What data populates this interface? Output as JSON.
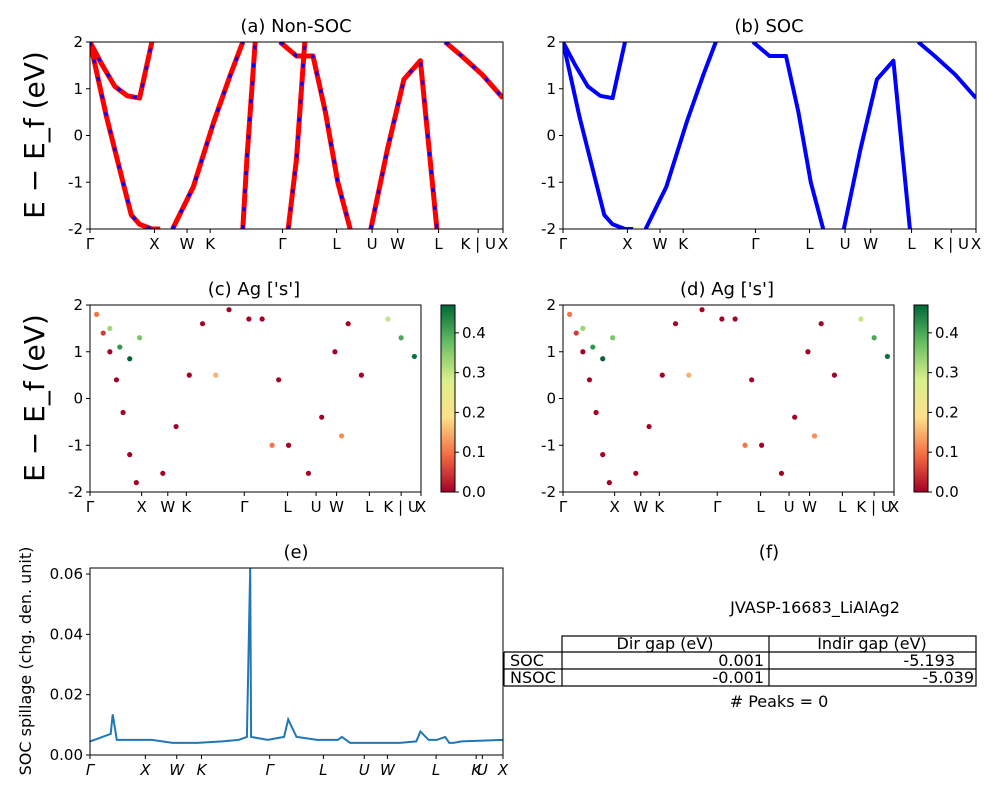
{
  "colors": {
    "nonsoc_up": "#ff0000",
    "nonsoc_dn": "#0000ff",
    "soc": "#0000ff",
    "spillage": "#1f77b4"
  },
  "kpath": {
    "labels": [
      "Γ",
      "X",
      "W",
      "K",
      "Γ",
      "L",
      "U",
      "W",
      "L",
      "K | U",
      "X"
    ],
    "labels_italic": [
      "Γ",
      "X",
      "W",
      "K",
      "Γ",
      "L",
      "U",
      "W",
      "L",
      "K",
      "U",
      "X"
    ]
  },
  "ylabel_band": "E − E_f (eV)",
  "chart_data": [
    {
      "id": "a",
      "type": "line",
      "title": "(a) Non-SOC",
      "ylim": [
        -2,
        2
      ],
      "yticks": [
        -2,
        -1,
        0,
        1,
        2
      ],
      "xlabel": "",
      "ylabel": "E − E_f (eV)",
      "xticks": [
        "Γ",
        "X",
        "W",
        "K",
        "Γ",
        "L",
        "U",
        "W",
        "L",
        "K | U",
        "X"
      ],
      "series": [
        {
          "x": [
            0,
            0.03,
            0.06,
            0.09,
            0.12,
            0.15
          ],
          "values": [
            2.0,
            1.5,
            1.05,
            0.85,
            0.8,
            2.0
          ]
        },
        {
          "x": [
            0,
            0.04,
            0.08,
            0.1,
            0.12,
            0.15,
            0.17
          ],
          "values": [
            2.0,
            0.4,
            -1.0,
            -1.7,
            -1.9,
            -2.0,
            -2.0
          ]
        },
        {
          "x": [
            0.2,
            0.25,
            0.3,
            0.34,
            0.37
          ],
          "values": [
            -2.0,
            -1.1,
            0.3,
            1.3,
            2.0
          ]
        },
        {
          "x": [
            0.37,
            0.38,
            0.4
          ],
          "values": [
            -2.0,
            -0.5,
            2.0
          ]
        },
        {
          "x": [
            0.46,
            0.5,
            0.54,
            0.57,
            0.6,
            0.63
          ],
          "values": [
            2.0,
            1.7,
            1.7,
            0.5,
            -1.0,
            -2.0
          ]
        },
        {
          "x": [
            0.48,
            0.5,
            0.52
          ],
          "values": [
            -2.0,
            -0.5,
            2.0
          ]
        },
        {
          "x": [
            0.68,
            0.72,
            0.76,
            0.8,
            0.84
          ],
          "values": [
            -2.0,
            -0.3,
            1.2,
            1.6,
            -2.0
          ]
        },
        {
          "x": [
            0.86,
            0.9,
            0.95,
            1.0
          ],
          "values": [
            2.0,
            1.7,
            1.3,
            0.8
          ]
        }
      ]
    },
    {
      "id": "b",
      "type": "line",
      "title": "(b) SOC",
      "ylim": [
        -2,
        2
      ],
      "yticks": [
        -2,
        -1,
        0,
        1,
        2
      ],
      "xlabel": "",
      "ylabel": "",
      "xticks": [
        "Γ",
        "X",
        "W",
        "K",
        "Γ",
        "L",
        "U",
        "W",
        "L",
        "K | U",
        "X"
      ],
      "series": [
        {
          "x": [
            0,
            0.03,
            0.06,
            0.09,
            0.12,
            0.15
          ],
          "values": [
            2.0,
            1.5,
            1.05,
            0.85,
            0.8,
            2.0
          ]
        },
        {
          "x": [
            0,
            0.04,
            0.08,
            0.1,
            0.12,
            0.15,
            0.17
          ],
          "values": [
            2.0,
            0.4,
            -1.0,
            -1.7,
            -1.9,
            -2.0,
            -2.0
          ]
        },
        {
          "x": [
            0.2,
            0.25,
            0.3,
            0.34,
            0.37
          ],
          "values": [
            -2.0,
            -1.1,
            0.3,
            1.3,
            2.0
          ]
        },
        {
          "x": [
            0.46,
            0.5,
            0.54,
            0.57,
            0.6,
            0.63
          ],
          "values": [
            2.0,
            1.7,
            1.7,
            0.5,
            -1.0,
            -2.0
          ]
        },
        {
          "x": [
            0.68,
            0.72,
            0.76,
            0.8,
            0.84
          ],
          "values": [
            -2.0,
            -0.3,
            1.2,
            1.6,
            -2.0
          ]
        },
        {
          "x": [
            0.86,
            0.9,
            0.95,
            1.0
          ],
          "values": [
            2.0,
            1.7,
            1.3,
            0.8
          ]
        }
      ]
    },
    {
      "id": "c",
      "type": "scatter",
      "title": "(c)  Ag ['s']",
      "ylim": [
        -2,
        2
      ],
      "yticks": [
        -2,
        -1,
        0,
        1,
        2
      ],
      "xlabel": "",
      "ylabel": "E − E_f (eV)",
      "xticks": [
        "Γ",
        "X",
        "W",
        "K",
        "Γ",
        "L",
        "U",
        "W",
        "L",
        "K | U",
        "X"
      ],
      "colorbar": {
        "min": 0.0,
        "max": 0.47,
        "ticks": [
          "0.0",
          "0.1",
          "0.2",
          "0.3",
          "0.4"
        ]
      },
      "points": [
        {
          "x": 0.02,
          "y": 1.8,
          "v": 0.1
        },
        {
          "x": 0.04,
          "y": 1.4,
          "v": 0.05
        },
        {
          "x": 0.06,
          "y": 1.0,
          "v": 0.0
        },
        {
          "x": 0.08,
          "y": 0.4,
          "v": 0.0
        },
        {
          "x": 0.1,
          "y": -0.3,
          "v": 0.0
        },
        {
          "x": 0.12,
          "y": -1.2,
          "v": 0.0
        },
        {
          "x": 0.14,
          "y": -1.8,
          "v": 0.0
        },
        {
          "x": 0.06,
          "y": 1.5,
          "v": 0.33
        },
        {
          "x": 0.09,
          "y": 1.1,
          "v": 0.42
        },
        {
          "x": 0.12,
          "y": 0.85,
          "v": 0.47
        },
        {
          "x": 0.15,
          "y": 1.3,
          "v": 0.36
        },
        {
          "x": 0.22,
          "y": -1.6,
          "v": 0.0
        },
        {
          "x": 0.26,
          "y": -0.6,
          "v": 0.0
        },
        {
          "x": 0.3,
          "y": 0.5,
          "v": 0.0
        },
        {
          "x": 0.34,
          "y": 1.6,
          "v": 0.0
        },
        {
          "x": 0.38,
          "y": 0.5,
          "v": 0.15
        },
        {
          "x": 0.42,
          "y": 1.9,
          "v": 0.0
        },
        {
          "x": 0.48,
          "y": 1.7,
          "v": 0.0
        },
        {
          "x": 0.52,
          "y": 1.7,
          "v": 0.0
        },
        {
          "x": 0.57,
          "y": 0.4,
          "v": 0.0
        },
        {
          "x": 0.6,
          "y": -1.0,
          "v": 0.0
        },
        {
          "x": 0.55,
          "y": -1.0,
          "v": 0.1
        },
        {
          "x": 0.66,
          "y": -1.6,
          "v": 0.0
        },
        {
          "x": 0.7,
          "y": -0.4,
          "v": 0.0
        },
        {
          "x": 0.74,
          "y": 1.0,
          "v": 0.0
        },
        {
          "x": 0.78,
          "y": 1.6,
          "v": 0.0
        },
        {
          "x": 0.82,
          "y": 0.5,
          "v": 0.0
        },
        {
          "x": 0.76,
          "y": -0.8,
          "v": 0.12
        },
        {
          "x": 0.9,
          "y": 1.7,
          "v": 0.3
        },
        {
          "x": 0.94,
          "y": 1.3,
          "v": 0.4
        },
        {
          "x": 0.98,
          "y": 0.9,
          "v": 0.46
        }
      ]
    },
    {
      "id": "d",
      "type": "scatter",
      "title": "(d) Ag ['s']",
      "ylim": [
        -2,
        2
      ],
      "yticks": [
        -2,
        -1,
        0,
        1,
        2
      ],
      "xlabel": "",
      "ylabel": "",
      "xticks": [
        "Γ",
        "X",
        "W",
        "K",
        "Γ",
        "L",
        "U",
        "W",
        "L",
        "K | U",
        "X"
      ],
      "colorbar": {
        "min": 0.0,
        "max": 0.47,
        "ticks": [
          "0.0",
          "0.1",
          "0.2",
          "0.3",
          "0.4"
        ]
      },
      "points": [
        {
          "x": 0.02,
          "y": 1.8,
          "v": 0.1
        },
        {
          "x": 0.04,
          "y": 1.4,
          "v": 0.05
        },
        {
          "x": 0.06,
          "y": 1.0,
          "v": 0.0
        },
        {
          "x": 0.08,
          "y": 0.4,
          "v": 0.0
        },
        {
          "x": 0.1,
          "y": -0.3,
          "v": 0.0
        },
        {
          "x": 0.12,
          "y": -1.2,
          "v": 0.0
        },
        {
          "x": 0.14,
          "y": -1.8,
          "v": 0.0
        },
        {
          "x": 0.06,
          "y": 1.5,
          "v": 0.33
        },
        {
          "x": 0.09,
          "y": 1.1,
          "v": 0.42
        },
        {
          "x": 0.12,
          "y": 0.85,
          "v": 0.47
        },
        {
          "x": 0.15,
          "y": 1.3,
          "v": 0.36
        },
        {
          "x": 0.22,
          "y": -1.6,
          "v": 0.0
        },
        {
          "x": 0.26,
          "y": -0.6,
          "v": 0.0
        },
        {
          "x": 0.3,
          "y": 0.5,
          "v": 0.0
        },
        {
          "x": 0.34,
          "y": 1.6,
          "v": 0.0
        },
        {
          "x": 0.38,
          "y": 0.5,
          "v": 0.15
        },
        {
          "x": 0.42,
          "y": 1.9,
          "v": 0.0
        },
        {
          "x": 0.48,
          "y": 1.7,
          "v": 0.0
        },
        {
          "x": 0.52,
          "y": 1.7,
          "v": 0.0
        },
        {
          "x": 0.57,
          "y": 0.4,
          "v": 0.0
        },
        {
          "x": 0.6,
          "y": -1.0,
          "v": 0.0
        },
        {
          "x": 0.55,
          "y": -1.0,
          "v": 0.1
        },
        {
          "x": 0.66,
          "y": -1.6,
          "v": 0.0
        },
        {
          "x": 0.7,
          "y": -0.4,
          "v": 0.0
        },
        {
          "x": 0.74,
          "y": 1.0,
          "v": 0.0
        },
        {
          "x": 0.78,
          "y": 1.6,
          "v": 0.0
        },
        {
          "x": 0.82,
          "y": 0.5,
          "v": 0.0
        },
        {
          "x": 0.76,
          "y": -0.8,
          "v": 0.12
        },
        {
          "x": 0.9,
          "y": 1.7,
          "v": 0.3
        },
        {
          "x": 0.94,
          "y": 1.3,
          "v": 0.4
        },
        {
          "x": 0.98,
          "y": 0.9,
          "v": 0.46
        }
      ]
    },
    {
      "id": "e",
      "type": "line",
      "title": "(e)",
      "ylim": [
        0,
        0.062
      ],
      "yticks": [
        "0.00",
        "0.02",
        "0.04",
        "0.06"
      ],
      "xlabel": "",
      "ylabel": "SOC spillage (chg. den. unit)",
      "xticks": [
        "Γ",
        "X",
        "W",
        "K",
        "Γ",
        "L",
        "U",
        "W",
        "L",
        "K",
        "U",
        "X"
      ],
      "series": [
        {
          "x": [
            0,
            0.05,
            0.055,
            0.065,
            0.08,
            0.15,
            0.2,
            0.26,
            0.32,
            0.36,
            0.38,
            0.388,
            0.39,
            0.41,
            0.43,
            0.47,
            0.48,
            0.5,
            0.55,
            0.6,
            0.61,
            0.63,
            0.68,
            0.75,
            0.79,
            0.8,
            0.82,
            0.84,
            0.86,
            0.87,
            0.88,
            0.9,
            1.0
          ],
          "values": [
            0.0045,
            0.007,
            0.0135,
            0.005,
            0.005,
            0.005,
            0.004,
            0.004,
            0.0045,
            0.005,
            0.006,
            0.062,
            0.006,
            0.0055,
            0.005,
            0.006,
            0.0118,
            0.006,
            0.005,
            0.005,
            0.006,
            0.004,
            0.004,
            0.004,
            0.0045,
            0.0078,
            0.005,
            0.005,
            0.006,
            0.004,
            0.004,
            0.0045,
            0.005
          ]
        }
      ]
    },
    {
      "id": "f",
      "type": "table",
      "title": "(f)",
      "subtitle": "JVASP-16683_LiAlAg2",
      "columns": [
        "Dir gap (eV)",
        "Indir gap (eV)"
      ],
      "rows": [
        {
          "label": "SOC",
          "values": [
            "0.001",
            "-5.193"
          ]
        },
        {
          "label": "NSOC",
          "values": [
            "-0.001",
            "-5.039"
          ]
        }
      ],
      "footer": "# Peaks = 0"
    }
  ]
}
